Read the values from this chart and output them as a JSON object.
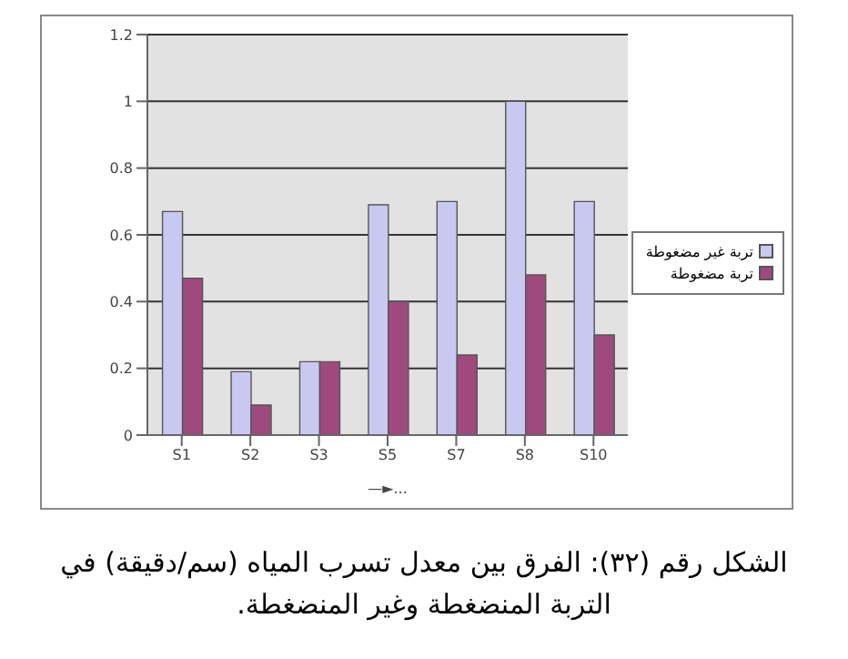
{
  "chart_data": {
    "type": "bar",
    "xlabel": "—►...",
    "categories": [
      "S1",
      "S2",
      "S3",
      "S5",
      "S7",
      "S8",
      "S10"
    ],
    "series": [
      {
        "name": "تربة غير مضغوطة",
        "color": "#c8c8f0",
        "values": [
          0.67,
          0.19,
          0.22,
          0.69,
          0.7,
          1.0,
          0.7
        ]
      },
      {
        "name": "تربة مضغوطة",
        "color": "#9e4a7e",
        "values": [
          0.47,
          0.09,
          0.22,
          0.4,
          0.24,
          0.48,
          0.3
        ]
      }
    ],
    "ylim": [
      0,
      1.2
    ],
    "yticks": [
      0,
      0.2,
      0.4,
      0.6,
      0.8,
      1,
      1.2
    ],
    "grid": "y",
    "legend": "right",
    "annotations": [
      "الشكل رقم (٣٢): الفرق بين معدل تسرب المياه (سم/دقيقة) في التربة المنضغطة وغير المنضغطة."
    ]
  }
}
